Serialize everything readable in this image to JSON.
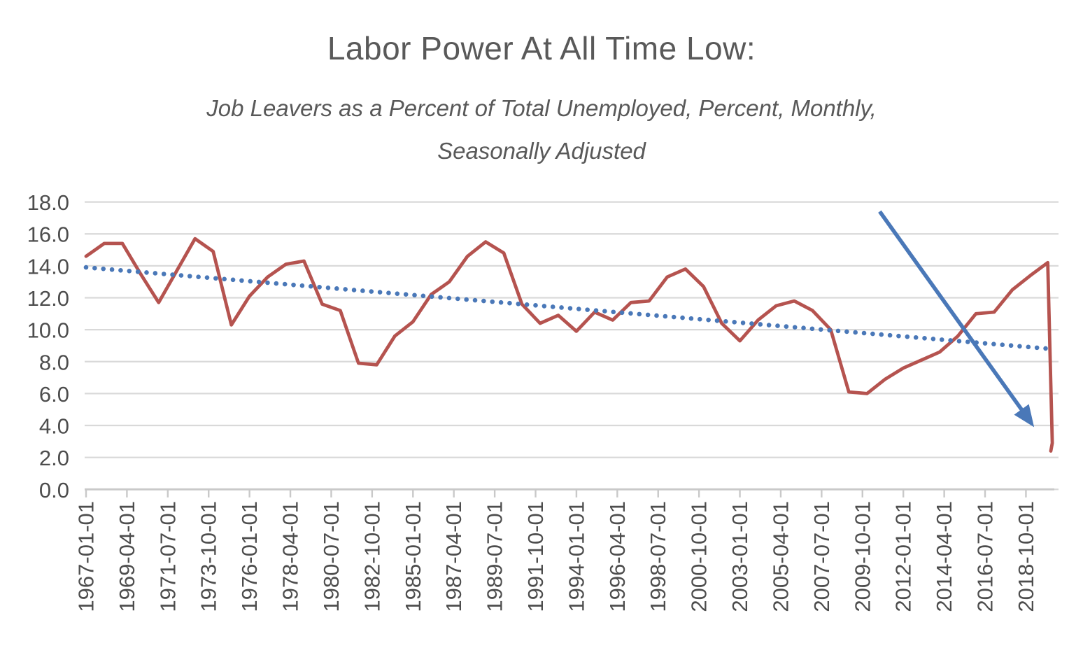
{
  "chart_data": {
    "type": "line",
    "title": "Labor Power At All Time Low:",
    "subtitle_lines": [
      "Job Leavers as a Percent of Total Unemployed, Percent, Monthly,",
      "Seasonally Adjusted"
    ],
    "grid": true,
    "legend": "none",
    "y_axis": {
      "min": 0,
      "max": 18,
      "step": 2,
      "tick_labels": [
        "18.0",
        "16.0",
        "14.0",
        "12.0",
        "10.0",
        "8.0",
        "6.0",
        "4.0",
        "2.0",
        "0.0"
      ]
    },
    "x_axis": {
      "start_date": "1967-01-01",
      "tick_interval_months": 27,
      "tick_labels": [
        "1967-01-01",
        "1969-04-01",
        "1971-07-01",
        "1973-10-01",
        "1976-01-01",
        "1978-04-01",
        "1980-07-01",
        "1982-10-01",
        "1985-01-01",
        "1987-04-01",
        "1989-07-01",
        "1991-10-01",
        "1994-01-01",
        "1996-04-01",
        "1998-07-01",
        "2000-10-01",
        "2003-01-01",
        "2005-04-01",
        "2007-07-01",
        "2009-10-01",
        "2012-01-01",
        "2014-04-01",
        "2016-07-01",
        "2018-10-01"
      ]
    },
    "colors": {
      "series_red": "#B5534F",
      "trend_blue": "#4A78B8",
      "gridline": "#D9D9D9",
      "axis_line": "#C9C9C9",
      "axis_text": "#4D4D4D",
      "title_text": "#595959"
    },
    "series": [
      {
        "name": "Job Leavers as a Percent of Total Unemployed",
        "style": "solid",
        "color": "#B5534F",
        "points": [
          [
            1967,
            14.6
          ],
          [
            1968,
            15.4
          ],
          [
            1969,
            15.4
          ],
          [
            1970,
            13.5
          ],
          [
            1971,
            11.7
          ],
          [
            1972,
            13.7
          ],
          [
            1973,
            15.7
          ],
          [
            1974,
            14.9
          ],
          [
            1975,
            10.3
          ],
          [
            1976,
            12.1
          ],
          [
            1977,
            13.3
          ],
          [
            1978,
            14.1
          ],
          [
            1979,
            14.3
          ],
          [
            1980,
            11.6
          ],
          [
            1981,
            11.2
          ],
          [
            1982,
            7.9
          ],
          [
            1983,
            7.8
          ],
          [
            1984,
            9.6
          ],
          [
            1985,
            10.5
          ],
          [
            1986,
            12.2
          ],
          [
            1987,
            13.0
          ],
          [
            1988,
            14.6
          ],
          [
            1989,
            15.5
          ],
          [
            1990,
            14.8
          ],
          [
            1991,
            11.6
          ],
          [
            1992,
            10.4
          ],
          [
            1993,
            10.9
          ],
          [
            1994,
            9.9
          ],
          [
            1995,
            11.1
          ],
          [
            1996,
            10.6
          ],
          [
            1997,
            11.7
          ],
          [
            1998,
            11.8
          ],
          [
            1999,
            13.3
          ],
          [
            2000,
            13.8
          ],
          [
            2001,
            12.7
          ],
          [
            2002,
            10.4
          ],
          [
            2003,
            9.3
          ],
          [
            2004,
            10.6
          ],
          [
            2005,
            11.5
          ],
          [
            2006,
            11.8
          ],
          [
            2007,
            11.2
          ],
          [
            2008,
            10.0
          ],
          [
            2009,
            6.1
          ],
          [
            2010,
            6.0
          ],
          [
            2011,
            6.9
          ],
          [
            2012,
            7.6
          ],
          [
            2013,
            8.1
          ],
          [
            2014,
            8.6
          ],
          [
            2015,
            9.6
          ],
          [
            2016,
            11.0
          ],
          [
            2017,
            11.1
          ],
          [
            2018,
            12.5
          ],
          [
            2019,
            13.4
          ],
          [
            2019.95,
            14.2
          ],
          [
            2020.2,
            2.9
          ],
          [
            2020.12,
            2.4
          ]
        ]
      },
      {
        "name": "Linear trend",
        "style": "dotted",
        "color": "#4A78B8",
        "points": [
          [
            1967,
            13.9
          ],
          [
            2020.1,
            8.8
          ]
        ]
      }
    ],
    "annotation_arrow": {
      "color": "#4A78B8",
      "from": [
        2010.7,
        17.4
      ],
      "to": [
        2019.2,
        3.9
      ]
    }
  }
}
